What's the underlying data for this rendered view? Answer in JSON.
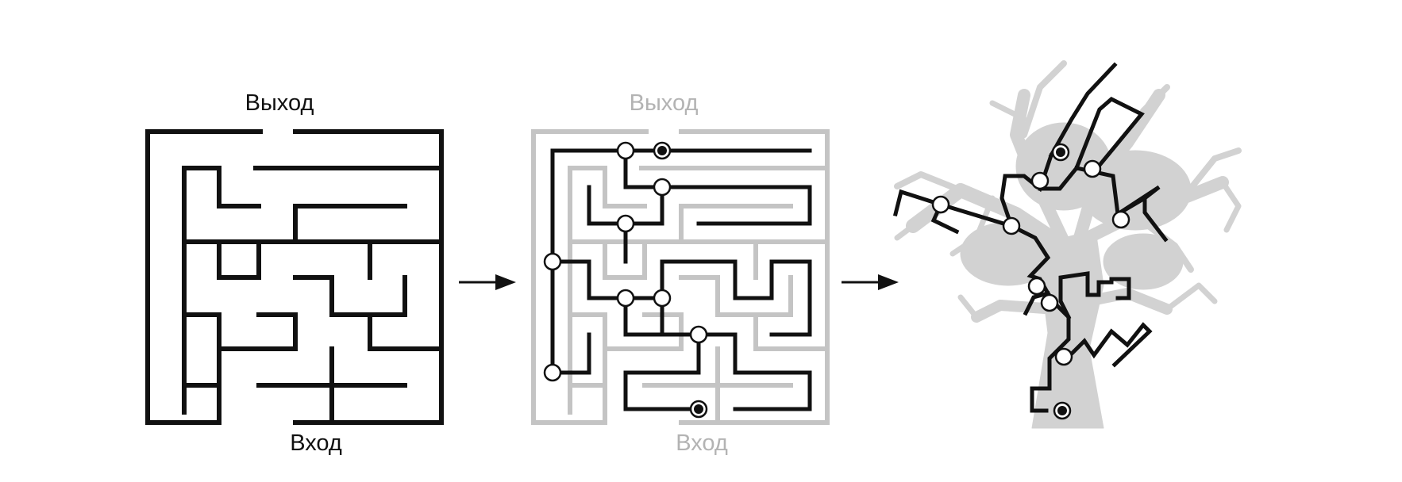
{
  "panel_maze": {
    "exit_label": "Выход",
    "entry_label": "Вход"
  },
  "panel_graph": {
    "exit_label": "Выход",
    "entry_label": "Вход"
  },
  "colors": {
    "ink": "#111111",
    "faded": "#c4c4c4",
    "faded_text": "#b3b3b3",
    "tree": "#d2d2d2"
  },
  "icons": [
    "arrow-right-icon",
    "arrow-right-icon"
  ]
}
